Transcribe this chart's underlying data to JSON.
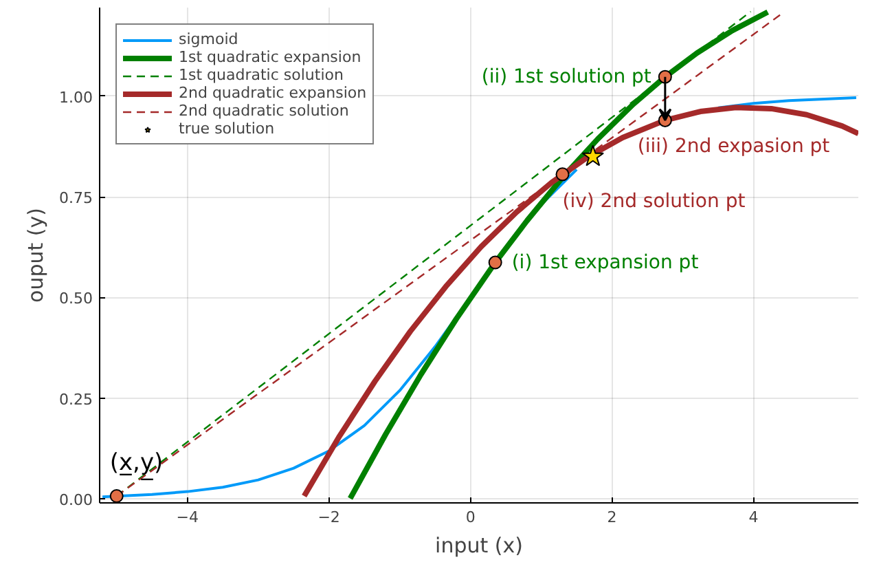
{
  "chart_data": {
    "type": "line",
    "xlabel": "input (x)",
    "ylabel": "ouput (y)",
    "xlim": [
      -5.24,
      5.48
    ],
    "ylim": [
      -0.01,
      1.22
    ],
    "xticks": [
      {
        "value": -4,
        "label": "−4"
      },
      {
        "value": -2,
        "label": "−2"
      },
      0,
      2,
      4
    ],
    "yticks": [
      {
        "value": 0,
        "label": "0.00"
      },
      {
        "value": 0.25,
        "label": "0.25"
      },
      {
        "value": 0.5,
        "label": "0.50"
      },
      {
        "value": 0.75,
        "label": "0.75"
      },
      {
        "value": 1,
        "label": "1.00"
      }
    ],
    "grid": true,
    "legend": "top left",
    "series": [
      {
        "name": "sigmoid",
        "color": "#009af9",
        "x": [
          -5.2,
          -4.5,
          -4,
          -3.5,
          -3,
          -2.5,
          -2,
          -1.5,
          -1,
          -0.5,
          0,
          0.5,
          1,
          1.5,
          2,
          2.5,
          3,
          3.5,
          4,
          4.5,
          5,
          5.45
        ],
        "values": [
          0.005,
          0.011,
          0.018,
          0.029,
          0.047,
          0.076,
          0.119,
          0.182,
          0.269,
          0.378,
          0.5,
          0.622,
          0.731,
          0.818,
          null,
          null,
          null,
          0.971,
          0.982,
          0.989,
          0.993,
          0.996
        ]
      },
      {
        "name": "1st quadratic expansion",
        "color": "#008000",
        "x": [
          -1.7,
          -1.2,
          -0.7,
          -0.2,
          0.35,
          0.8,
          1.3,
          1.8,
          2.3,
          2.75,
          3.2,
          3.7,
          4.2
        ],
        "values": [
          0.001,
          0.16,
          0.309,
          0.447,
          0.587,
          0.691,
          0.798,
          0.894,
          0.98,
          1.048,
          1.107,
          1.163,
          1.209
        ]
      },
      {
        "name": "1st quadratic solution",
        "color": "#008000",
        "line_style": "dashed",
        "x": [
          -5,
          2.75,
          3.96
        ],
        "values": [
          0.007,
          1.048,
          1.21
        ]
      },
      {
        "name": "2nd quadratic expansion",
        "color": "#a52a2a",
        "x": [
          -2.35,
          -1.85,
          -1.35,
          -0.85,
          -0.35,
          0.15,
          0.65,
          1.15,
          1.65,
          2.15,
          2.75,
          3.25,
          3.75,
          4.25,
          4.75,
          5.25,
          5.48
        ],
        "values": [
          0.007,
          0.156,
          0.292,
          0.416,
          0.527,
          0.626,
          0.712,
          0.786,
          0.848,
          0.897,
          0.94,
          0.962,
          0.972,
          0.969,
          0.954,
          0.926,
          0.907
        ]
      },
      {
        "name": "2nd quadratic solution",
        "color": "#a52a2a",
        "line_style": "dashed",
        "x": [
          -5,
          1.3,
          4.4
        ],
        "values": [
          0.007,
          0.807,
          1.205
        ]
      },
      {
        "color": "#e26f46",
        "type": "scatter",
        "marker": "circle",
        "x": [
          -5,
          0.35,
          2.75,
          2.75,
          1.3
        ],
        "values": [
          0.007,
          0.587,
          1.048,
          0.94,
          0.806
        ]
      },
      {
        "name": "true solution",
        "color": "#ffd700",
        "type": "scatter",
        "marker": "star",
        "x": [
          1.73
        ],
        "values": [
          0.85
        ]
      }
    ],
    "annotations": [
      {
        "text": "(i) 1st expansion pt",
        "x": 0.35,
        "y": 0.587
      },
      {
        "text": "(ii) 1st solution pt",
        "x": 2.75,
        "y": 1.048
      },
      {
        "text": "(iii) 2nd expasion pt",
        "x": 2.75,
        "y": 0.94
      },
      {
        "text": "(iv) 2nd solution pt",
        "x": 1.3,
        "y": 0.806
      },
      {
        "text": "(x̲,y̲)",
        "x": -5,
        "y": 0.007
      }
    ]
  }
}
